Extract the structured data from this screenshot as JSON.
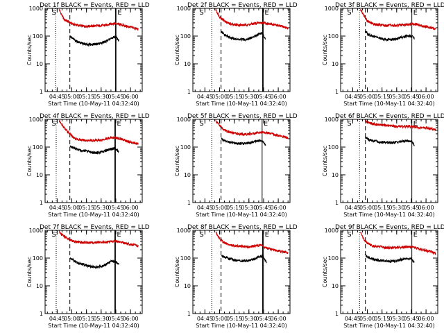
{
  "chart_data": {
    "type": "line",
    "grid": "3x3",
    "xlabel": "Start Time (10-May-11 04:32:40)",
    "ylabel": "Counts/sec",
    "x_tick_labels": [
      "04:45",
      "05:00",
      "05:15",
      "05:30",
      "05:45",
      "06:00"
    ],
    "x_tick_minutes": [
      45,
      60,
      75,
      90,
      105,
      120
    ],
    "xlim_minutes_after_04_00": [
      32.67,
      132
    ],
    "y_scale": "log",
    "y_tick_labels": [
      "1",
      "10",
      "100",
      "1000"
    ],
    "y_tick_values": [
      1,
      10,
      100,
      1000
    ],
    "ylim": [
      1,
      1000
    ],
    "series_legend": "BLACK = Events, RED = LLD",
    "series_colors": {
      "events": "#000000",
      "lld": "#cc0000"
    },
    "marker_labels": {
      "start": "S",
      "end": "E"
    },
    "panels": [
      {
        "title": "Det 1f BLACK = Events, RED = LLD",
        "start_min": 40,
        "markers": {
          "dotted": 43.5,
          "dashed": 58,
          "solid": [
            104.6,
            105.2
          ]
        },
        "lld": {
          "x": [
            47,
            52,
            60,
            65,
            70,
            80,
            90,
            95,
            100,
            105,
            110,
            115,
            120,
            125,
            128
          ],
          "y": [
            900,
            400,
            280,
            250,
            230,
            230,
            240,
            250,
            280,
            280,
            260,
            230,
            210,
            190,
            175
          ]
        },
        "events": {
          "x": [
            58,
            60,
            65,
            70,
            75,
            80,
            85,
            90,
            95,
            100,
            104,
            106,
            108
          ],
          "y": [
            100,
            85,
            65,
            55,
            50,
            50,
            52,
            55,
            65,
            80,
            95,
            85,
            70
          ]
        }
      },
      {
        "title": "Det 2f BLACK = Events, RED = LLD",
        "start_min": 40,
        "markers": {
          "dotted": 52,
          "dashed": 61.5,
          "solid": [
            104,
            104.6
          ]
        },
        "lld": {
          "x": [
            56,
            60,
            65,
            70,
            75,
            80,
            85,
            90,
            95,
            100,
            105,
            110,
            115,
            120,
            125,
            130
          ],
          "y": [
            900,
            500,
            350,
            280,
            260,
            250,
            250,
            260,
            280,
            300,
            300,
            280,
            260,
            240,
            220,
            190
          ]
        },
        "events": {
          "x": [
            62,
            65,
            70,
            75,
            80,
            85,
            90,
            95,
            100,
            104,
            105,
            107
          ],
          "y": [
            140,
            110,
            90,
            80,
            75,
            75,
            80,
            95,
            120,
            130,
            100,
            85
          ]
        }
      },
      {
        "title": "Det 3f BLACK = Events, RED = LLD",
        "start_min": 40,
        "markers": {
          "dotted": 52,
          "dashed": 58,
          "solid": [
            105.5
          ]
        },
        "lld": {
          "x": [
            53,
            56,
            60,
            65,
            70,
            80,
            90,
            100,
            105,
            110,
            115,
            120,
            125,
            130
          ],
          "y": [
            900,
            600,
            350,
            280,
            260,
            240,
            240,
            260,
            270,
            260,
            240,
            220,
            200,
            180
          ]
        },
        "events": {
          "x": [
            58,
            60,
            65,
            70,
            75,
            80,
            85,
            90,
            95,
            100,
            105,
            108
          ],
          "y": [
            150,
            120,
            100,
            90,
            80,
            75,
            75,
            80,
            90,
            100,
            100,
            85
          ]
        }
      },
      {
        "title": "Det 4f BLACK = Events, RED = LLD",
        "start_min": 40,
        "markers": {
          "dotted": 44,
          "dashed": 58,
          "solid": [
            104,
            104.6
          ]
        },
        "lld": {
          "x": [
            47,
            52,
            58,
            62,
            66,
            70,
            80,
            90,
            95,
            100,
            105,
            110,
            115,
            120,
            125,
            128
          ],
          "y": [
            900,
            500,
            300,
            220,
            190,
            180,
            170,
            180,
            200,
            220,
            220,
            200,
            170,
            150,
            140,
            130
          ]
        },
        "events": {
          "x": [
            58,
            60,
            65,
            70,
            75,
            80,
            85,
            90,
            95,
            100,
            104,
            108
          ],
          "y": [
            110,
            100,
            85,
            75,
            70,
            65,
            62,
            65,
            75,
            85,
            90,
            70
          ]
        }
      },
      {
        "title": "Det 5f BLACK = Events, RED = LLD",
        "start_min": 40,
        "markers": {
          "dotted": 52,
          "dashed": 61.5,
          "solid": [
            103.5
          ]
        },
        "lld": {
          "x": [
            56,
            60,
            65,
            70,
            75,
            80,
            85,
            90,
            95,
            100,
            105,
            110,
            115,
            120,
            125,
            130
          ],
          "y": [
            900,
            600,
            420,
            350,
            320,
            300,
            290,
            300,
            320,
            340,
            350,
            320,
            290,
            260,
            240,
            210
          ]
        },
        "events": {
          "x": [
            62,
            65,
            70,
            75,
            80,
            85,
            90,
            95,
            100,
            104,
            107
          ],
          "y": [
            200,
            170,
            150,
            140,
            135,
            135,
            140,
            155,
            175,
            160,
            120
          ]
        }
      },
      {
        "title": "Det 6f BLACK = Events, RED = LLD",
        "start_min": 40,
        "markers": {
          "dotted": 52,
          "dashed": 58,
          "solid": [
            105.5
          ]
        },
        "lld": {
          "x": [
            58,
            60,
            65,
            70,
            75,
            80,
            85,
            90,
            95,
            100,
            105,
            110,
            115,
            120,
            125,
            130
          ],
          "y": [
            900,
            800,
            700,
            650,
            620,
            600,
            580,
            560,
            560,
            560,
            550,
            520,
            500,
            480,
            460,
            430
          ]
        },
        "events": {
          "x": [
            58,
            60,
            65,
            70,
            75,
            80,
            85,
            90,
            95,
            100,
            105,
            108
          ],
          "y": [
            220,
            200,
            170,
            160,
            150,
            145,
            145,
            150,
            160,
            170,
            160,
            120
          ]
        }
      },
      {
        "title": "Det 7f BLACK = Events, RED = LLD",
        "start_min": 40,
        "markers": {
          "dotted": 44,
          "dashed": 58,
          "solid": [
            104,
            104.6
          ]
        },
        "lld": {
          "x": [
            47,
            52,
            58,
            62,
            66,
            70,
            80,
            90,
            95,
            100,
            105,
            110,
            115,
            120,
            125,
            128
          ],
          "y": [
            900,
            600,
            450,
            400,
            380,
            370,
            360,
            370,
            380,
            400,
            400,
            380,
            340,
            310,
            290,
            270
          ]
        },
        "events": {
          "x": [
            58,
            60,
            65,
            70,
            75,
            80,
            85,
            90,
            95,
            100,
            104,
            108
          ],
          "y": [
            100,
            90,
            70,
            60,
            55,
            50,
            48,
            50,
            60,
            75,
            80,
            60
          ]
        }
      },
      {
        "title": "Det 8f BLACK = Events, RED = LLD",
        "start_min": 40,
        "markers": {
          "dotted": 52,
          "dashed": 61.5,
          "solid": [
            104,
            104.8
          ]
        },
        "lld": {
          "x": [
            56,
            60,
            65,
            70,
            75,
            80,
            85,
            90,
            95,
            100,
            104,
            106,
            110,
            115,
            120,
            125,
            130
          ],
          "y": [
            900,
            500,
            360,
            300,
            280,
            270,
            260,
            260,
            270,
            290,
            280,
            240,
            220,
            200,
            180,
            170,
            150
          ]
        },
        "events": {
          "x": [
            62,
            65,
            70,
            75,
            80,
            85,
            90,
            95,
            100,
            104,
            106,
            108
          ],
          "y": [
            130,
            110,
            95,
            85,
            80,
            78,
            80,
            90,
            110,
            120,
            90,
            70
          ]
        }
      },
      {
        "title": "Det 9f BLACK = Events, RED = LLD",
        "start_min": 40,
        "markers": {
          "dotted": 52,
          "dashed": 58,
          "solid": [
            105.5
          ]
        },
        "lld": {
          "x": [
            53,
            56,
            60,
            65,
            70,
            80,
            90,
            100,
            105,
            110,
            115,
            120,
            125,
            130
          ],
          "y": [
            900,
            500,
            340,
            280,
            260,
            240,
            240,
            250,
            250,
            230,
            210,
            190,
            170,
            150
          ]
        },
        "events": {
          "x": [
            58,
            60,
            65,
            70,
            75,
            80,
            85,
            90,
            95,
            100,
            105,
            108
          ],
          "y": [
            130,
            110,
            95,
            85,
            80,
            78,
            78,
            80,
            90,
            100,
            95,
            70
          ]
        }
      }
    ]
  }
}
